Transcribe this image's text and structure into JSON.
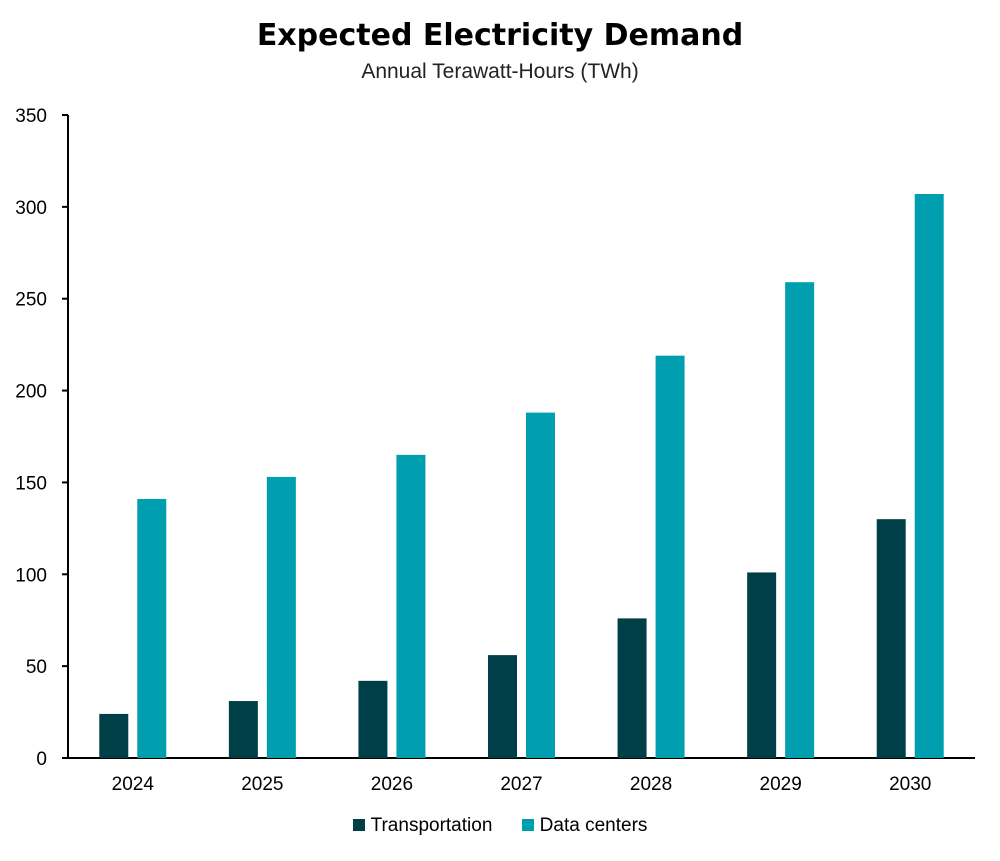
{
  "chart_data": {
    "type": "bar",
    "title": "Expected Electricity Demand",
    "subtitle": "Annual Terawatt-Hours (TWh)",
    "xlabel": "",
    "ylabel": "",
    "categories": [
      "2024",
      "2025",
      "2026",
      "2027",
      "2028",
      "2029",
      "2030"
    ],
    "series": [
      {
        "name": "Transportation",
        "color": "#003f47",
        "values": [
          24,
          31,
          42,
          56,
          76,
          101,
          130
        ]
      },
      {
        "name": "Data centers",
        "color": "#009fb0",
        "values": [
          141,
          153,
          165,
          188,
          219,
          259,
          307
        ]
      }
    ],
    "ylim": [
      0,
      350
    ],
    "yticks": [
      "0",
      "50",
      "100",
      "150",
      "200",
      "250",
      "300",
      "350"
    ],
    "grid": false,
    "legend_position": "bottom"
  }
}
